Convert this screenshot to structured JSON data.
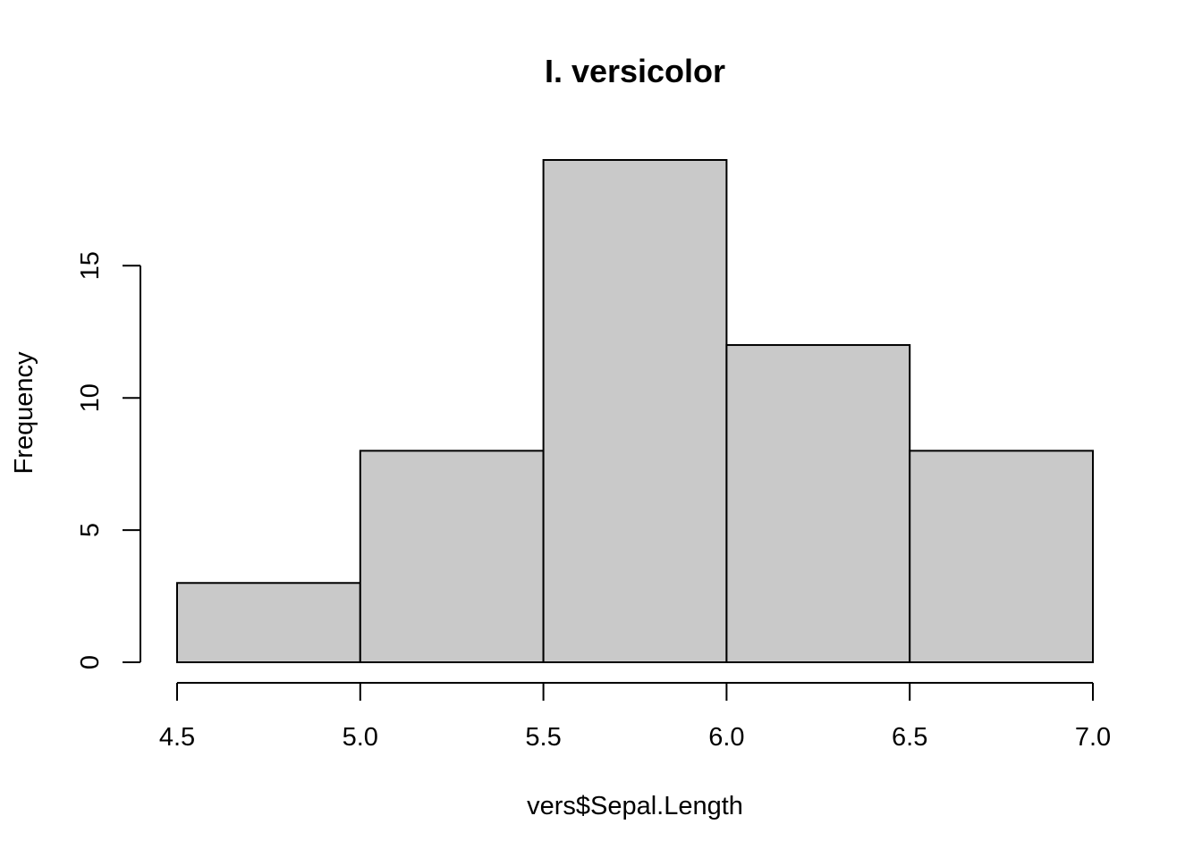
{
  "chart_data": {
    "type": "bar",
    "title": "I. versicolor",
    "xlabel": "vers$Sepal.Length",
    "ylabel": "Frequency",
    "bins": [
      {
        "start": 4.5,
        "end": 5.0,
        "count": 3
      },
      {
        "start": 5.0,
        "end": 5.5,
        "count": 8
      },
      {
        "start": 5.5,
        "end": 6.0,
        "count": 19
      },
      {
        "start": 6.0,
        "end": 6.5,
        "count": 12
      },
      {
        "start": 6.5,
        "end": 7.0,
        "count": 8
      }
    ],
    "x_ticks": [
      "4.5",
      "5.0",
      "5.5",
      "6.0",
      "6.5",
      "7.0"
    ],
    "y_ticks": [
      "0",
      "5",
      "10",
      "15"
    ],
    "xlim": [
      4.5,
      7.0
    ],
    "ylim": [
      0,
      19
    ],
    "grid": false,
    "bar_color": "#c9c9c9",
    "edge_color": "#000000"
  }
}
